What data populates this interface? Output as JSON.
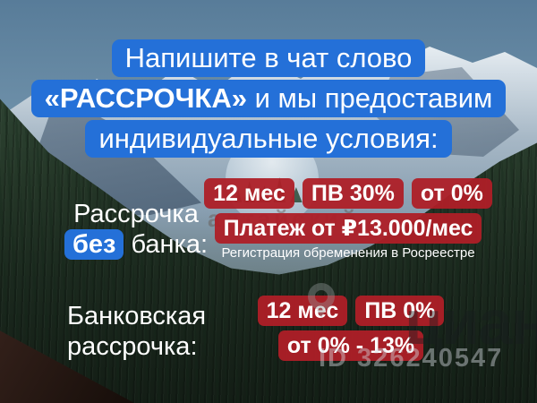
{
  "header": {
    "line1": "Напишите в чат слово",
    "line2_bold": "«РАССРОЧКА»",
    "line2_rest": " и мы предоставим",
    "line3": "индивидуальные условия:"
  },
  "no_bank_section": {
    "label_line1": "Рассрочка",
    "label_word_highlight": "без",
    "label_line2_rest": " банка:",
    "badges_row1": [
      "12 мес",
      "ПВ 30%",
      "от 0%"
    ],
    "badge_row2": "Платеж от ₽13.000/мес",
    "caption": "Регистрация обременения в Росреестре"
  },
  "bank_section": {
    "label_line1": "Банковская",
    "label_line2": "рассрочка:",
    "badges_row1": [
      "12 мес",
      "ПВ 0%"
    ],
    "badge_row2": "от 0% - 13%"
  },
  "watermarks": {
    "background_text": "алтайский",
    "brand": "циан",
    "listing_id": "ID 326240547"
  },
  "colors": {
    "accent_blue": "#2470d8",
    "badge_red": "#ae1f27",
    "text_white": "#ffffff"
  }
}
